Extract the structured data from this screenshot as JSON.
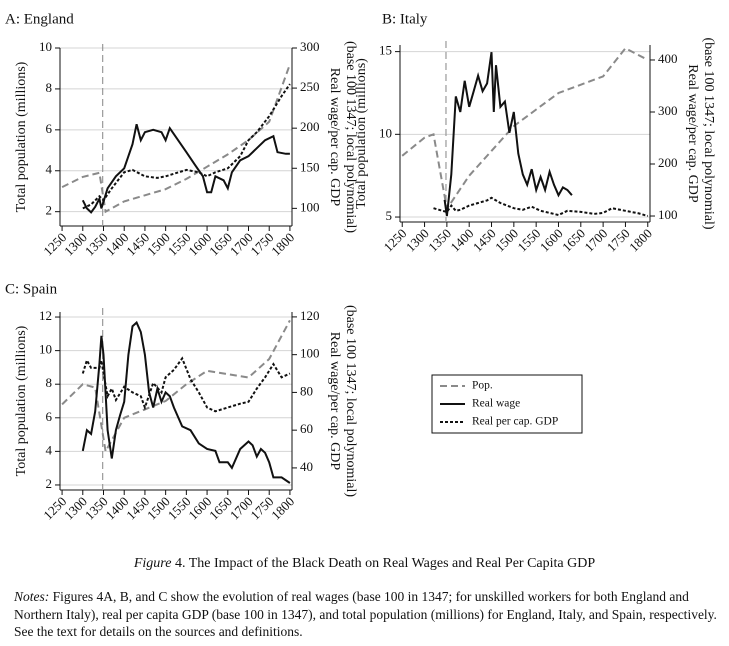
{
  "chart_data": [
    {
      "type": "line",
      "title": "A: England",
      "ylabel": "Total population (millions)",
      "y2label": [
        "Real wage/per cap. GDP",
        "(base 100 1347; local polynomial)"
      ],
      "xlim": [
        1245,
        1805
      ],
      "xticks": [
        1250,
        1300,
        1350,
        1400,
        1450,
        1500,
        1550,
        1600,
        1650,
        1700,
        1750,
        1800
      ],
      "ylim": [
        1.3,
        10
      ],
      "yticks": [
        2,
        4,
        6,
        8,
        10
      ],
      "y2lim": [
        78,
        300
      ],
      "y2ticks": [
        100,
        150,
        200,
        250,
        300
      ],
      "grid": true,
      "vline": 1348,
      "series": [
        {
          "name": "Pop.",
          "color": "#8a8a8a",
          "dash": "dashed",
          "axis": "y",
          "x": [
            1250,
            1300,
            1340,
            1355,
            1400,
            1450,
            1500,
            1550,
            1600,
            1650,
            1700,
            1750,
            1800
          ],
          "values": [
            3.2,
            3.7,
            3.9,
            2.0,
            2.5,
            2.8,
            3.1,
            3.6,
            4.2,
            4.8,
            5.5,
            6.4,
            9.2
          ]
        },
        {
          "name": "Real wage",
          "color": "#111111",
          "dash": "solid",
          "axis": "y2",
          "x": [
            1300,
            1310,
            1320,
            1330,
            1340,
            1345,
            1360,
            1380,
            1400,
            1420,
            1430,
            1440,
            1450,
            1470,
            1490,
            1500,
            1510,
            1530,
            1550,
            1570,
            1590,
            1600,
            1610,
            1620,
            1640,
            1650,
            1660,
            1680,
            1700,
            1720,
            1740,
            1760,
            1770,
            1790,
            1800
          ],
          "values": [
            110,
            100,
            95,
            102,
            112,
            100,
            125,
            140,
            150,
            180,
            205,
            185,
            195,
            198,
            195,
            185,
            200,
            185,
            170,
            155,
            140,
            120,
            120,
            140,
            135,
            125,
            145,
            160,
            165,
            175,
            185,
            190,
            170,
            168,
            168
          ]
        },
        {
          "name": "Real per cap. GDP",
          "color": "#111111",
          "dash": "dotted",
          "axis": "y2",
          "x": [
            1300,
            1320,
            1340,
            1350,
            1370,
            1400,
            1420,
            1450,
            1480,
            1500,
            1550,
            1580,
            1600,
            1620,
            1650,
            1680,
            1700,
            1720,
            1750,
            1780,
            1800
          ],
          "values": [
            100,
            105,
            115,
            110,
            125,
            145,
            148,
            140,
            138,
            140,
            148,
            145,
            140,
            145,
            150,
            165,
            185,
            195,
            215,
            240,
            255
          ]
        }
      ]
    },
    {
      "type": "line",
      "title": "B: Italy",
      "ylabel": "Total population (millions)",
      "y2label": [
        "Real wage/per cap. GDP",
        "(base 100 1347; local polynomial)"
      ],
      "xlim": [
        1245,
        1805
      ],
      "xticks": [
        1250,
        1300,
        1350,
        1400,
        1450,
        1500,
        1550,
        1600,
        1650,
        1700,
        1750,
        1800
      ],
      "ylim": [
        4.7,
        15.4
      ],
      "yticks": [
        5,
        10,
        15
      ],
      "y2lim": [
        88.5,
        428.8
      ],
      "y2ticks": [
        100,
        200,
        300,
        400
      ],
      "grid": true,
      "vline": 1348,
      "series": [
        {
          "color": "#8a8a8a",
          "dash": "dashed",
          "axis": "y",
          "x": [
            1250,
            1300,
            1320,
            1350,
            1400,
            1450,
            1500,
            1550,
            1600,
            1700,
            1750,
            1800
          ],
          "values": [
            8.7,
            9.8,
            10.0,
            5.5,
            7.5,
            9.0,
            10.5,
            11.5,
            12.5,
            13.5,
            15.2,
            14.5
          ]
        },
        {
          "color": "#111111",
          "dash": "solid",
          "axis": "y2",
          "x": [
            1345,
            1350,
            1360,
            1370,
            1380,
            1390,
            1400,
            1410,
            1420,
            1430,
            1440,
            1450,
            1455,
            1460,
            1470,
            1480,
            1490,
            1500,
            1510,
            1520,
            1530,
            1540,
            1550,
            1560,
            1570,
            1580,
            1590,
            1600,
            1610,
            1620,
            1630
          ],
          "values": [
            131,
            100,
            180,
            330,
            300,
            360,
            310,
            340,
            370,
            340,
            355,
            415,
            300,
            390,
            310,
            320,
            260,
            300,
            220,
            180,
            160,
            190,
            150,
            175,
            150,
            185,
            160,
            140,
            155,
            150,
            140
          ]
        },
        {
          "color": "#111111",
          "dash": "dotted",
          "axis": "y2",
          "x": [
            1320,
            1340,
            1350,
            1360,
            1370,
            1380,
            1400,
            1420,
            1440,
            1450,
            1470,
            1500,
            1520,
            1540,
            1560,
            1580,
            1600,
            1620,
            1650,
            1680,
            1700,
            1720,
            1750,
            1780,
            1800
          ],
          "values": [
            115,
            110,
            108,
            120,
            110,
            112,
            120,
            125,
            130,
            135,
            125,
            115,
            112,
            118,
            110,
            106,
            102,
            110,
            108,
            104,
            106,
            115,
            110,
            105,
            100
          ]
        }
      ]
    },
    {
      "type": "line",
      "title": "C: Spain",
      "ylabel": "Total population (millions)",
      "y2label": [
        "Real wage/per cap. GDP",
        "(base 100 1347; local polynomial)"
      ],
      "xlim": [
        1245,
        1805
      ],
      "xticks": [
        1250,
        1300,
        1350,
        1400,
        1450,
        1500,
        1550,
        1600,
        1650,
        1700,
        1750,
        1800
      ],
      "ylim": [
        1.7,
        12.3
      ],
      "yticks": [
        2,
        4,
        6,
        8,
        10,
        12
      ],
      "y2lim": [
        28.3,
        122.6
      ],
      "y2ticks": [
        40,
        60,
        80,
        100,
        120
      ],
      "grid": true,
      "vline": 1348,
      "series": [
        {
          "color": "#8a8a8a",
          "dash": "dashed",
          "axis": "y",
          "x": [
            1250,
            1300,
            1330,
            1355,
            1400,
            1450,
            1500,
            1550,
            1600,
            1700,
            1750,
            1800
          ],
          "values": [
            6.8,
            8.0,
            7.8,
            4.0,
            6.0,
            6.5,
            7.0,
            8.0,
            8.8,
            8.4,
            9.5,
            11.8
          ]
        },
        {
          "color": "#111111",
          "dash": "solid",
          "axis": "y2",
          "x": [
            1300,
            1310,
            1320,
            1330,
            1340,
            1345,
            1350,
            1360,
            1370,
            1380,
            1390,
            1400,
            1410,
            1420,
            1430,
            1440,
            1450,
            1460,
            1470,
            1480,
            1490,
            1500,
            1510,
            1520,
            1540,
            1560,
            1580,
            1600,
            1620,
            1630,
            1650,
            1660,
            1680,
            1700,
            1710,
            1720,
            1730,
            1740,
            1750,
            1760,
            1780,
            1800
          ],
          "values": [
            49,
            60,
            58,
            70,
            95,
            110,
            100,
            60,
            45,
            60,
            68,
            75,
            100,
            115,
            117,
            112,
            100,
            80,
            72,
            82,
            75,
            80,
            78,
            72,
            62,
            60,
            53,
            50,
            49,
            43,
            43,
            40,
            50,
            54,
            52,
            46,
            50,
            48,
            43,
            35,
            35,
            32
          ]
        },
        {
          "color": "#111111",
          "dash": "dotted",
          "axis": "y2",
          "x": [
            1300,
            1310,
            1320,
            1340,
            1345,
            1350,
            1360,
            1370,
            1380,
            1400,
            1420,
            1440,
            1450,
            1470,
            1490,
            1500,
            1520,
            1540,
            1560,
            1580,
            1600,
            1620,
            1650,
            1680,
            1700,
            1720,
            1740,
            1760,
            1780,
            1800
          ],
          "values": [
            90,
            97,
            93,
            93,
            97,
            90,
            78,
            82,
            76,
            83,
            80,
            78,
            72,
            85,
            80,
            88,
            92,
            98,
            87,
            80,
            72,
            70,
            72,
            74,
            75,
            82,
            88,
            95,
            88,
            90
          ]
        }
      ]
    }
  ],
  "caption": {
    "label": "Figure",
    "text": "4. The Impact of the Black Death on Real Wages and Real Per Capita GDP"
  },
  "notes": {
    "label": "Notes:",
    "text": "Figures 4A, B, and C show the evolution of real wages (base 100 in 1347; for unskilled workers for both England and Northern Italy), real per capita GDP (base 100 in 1347), and total population (millions) for England, Italy, and Spain, respectively. See the text for details on the sources and definitions."
  }
}
